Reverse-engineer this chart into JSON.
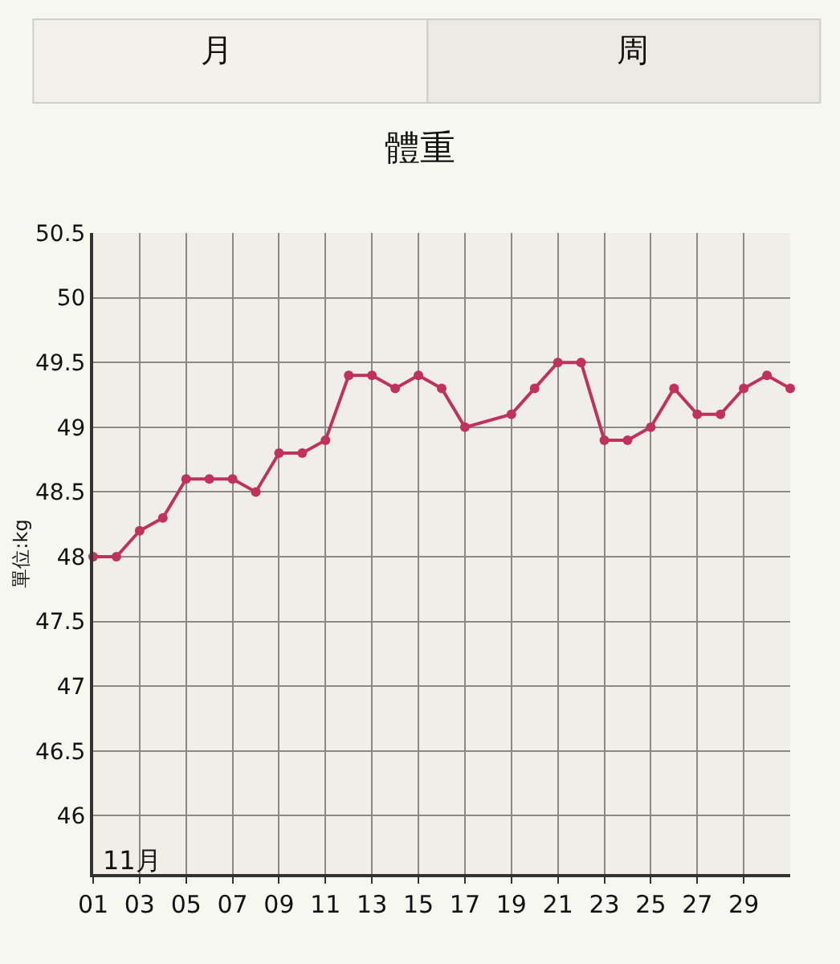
{
  "chart_data": {
    "type": "line",
    "title": "體重",
    "ylabel": "單位:kg",
    "annotations": [
      "月",
      "周",
      "11月"
    ],
    "x": [
      1,
      2,
      3,
      4,
      5,
      6,
      7,
      8,
      9,
      10,
      11,
      12,
      13,
      14,
      15,
      16,
      17,
      19,
      20,
      21,
      22,
      23,
      24,
      25,
      26,
      27,
      28,
      29,
      30,
      31
    ],
    "series": [
      {
        "color": "#c0325a",
        "values": [
          48.0,
          48.0,
          48.2,
          48.3,
          48.6,
          48.6,
          48.6,
          48.5,
          48.8,
          48.8,
          48.9,
          49.4,
          49.4,
          49.3,
          49.4,
          49.3,
          49.0,
          49.1,
          49.3,
          49.5,
          49.5,
          48.9,
          48.9,
          49.0,
          49.3,
          49.1,
          49.1,
          49.3,
          49.4,
          49.3
        ]
      }
    ],
    "xlim": [
      1,
      31
    ],
    "xticks": [
      {
        "value": 1,
        "label": "01"
      },
      {
        "value": 3,
        "label": "03"
      },
      {
        "value": 5,
        "label": "05"
      },
      {
        "value": 7,
        "label": "07"
      },
      {
        "value": 9,
        "label": "09"
      },
      {
        "value": 11,
        "label": "11"
      },
      {
        "value": 13,
        "label": "13"
      },
      {
        "value": 15,
        "label": "15"
      },
      {
        "value": 17,
        "label": "17"
      },
      {
        "value": 19,
        "label": "19"
      },
      {
        "value": 21,
        "label": "21"
      },
      {
        "value": 23,
        "label": "23"
      },
      {
        "value": 25,
        "label": "25"
      },
      {
        "value": 27,
        "label": "27"
      },
      {
        "value": 29,
        "label": "29"
      }
    ],
    "ylim": [
      45.55,
      50.5
    ],
    "yticks": [
      46,
      46.5,
      47,
      47.5,
      48,
      48.5,
      49,
      49.5,
      50,
      50.5
    ],
    "grid": true,
    "marker": "circle",
    "line_style": "solid"
  }
}
